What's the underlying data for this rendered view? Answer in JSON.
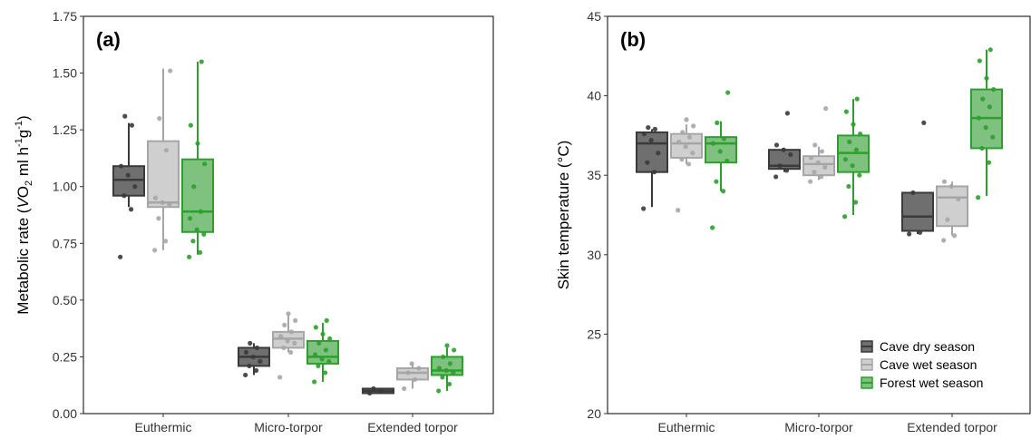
{
  "colors": {
    "cave_dry": "#3a3a3a",
    "cave_wet": "#a6a6a6",
    "forest_wet": "#2e9e2e"
  },
  "legend": {
    "position": "bottom-right of panel (b)",
    "entries": [
      "Cave dry season",
      "Cave wet season",
      "Forest wet season"
    ]
  },
  "chart_data": [
    {
      "type": "box",
      "panel_label": "(a)",
      "ylabel_prefix": "Metabolic rate (",
      "ylabel_v": "V",
      "ylabel_o2": "O",
      "ylabel_o2_sub": "2",
      "ylabel_unit": " ml h",
      "ylabel_exp1": "-1",
      "ylabel_g": "g",
      "ylabel_exp2": "-1",
      "ylabel_suffix": ")",
      "xlabel": "",
      "categories": [
        "Euthermic",
        "Micro-torpor",
        "Extended torpor"
      ],
      "ylim": [
        0,
        1.75
      ],
      "yticks": [
        "0.00",
        "0.25",
        "0.50",
        "0.75",
        "1.00",
        "1.25",
        "1.50",
        "1.75"
      ],
      "grid": false,
      "series": [
        {
          "name": "Cave dry season",
          "boxes": [
            {
              "min": 0.91,
              "q1": 0.96,
              "median": 1.03,
              "q3": 1.09,
              "max": 1.28,
              "points": [
                0.69,
                0.9,
                0.96,
                1.0,
                1.05,
                1.09,
                1.27,
                1.31
              ]
            },
            {
              "min": 0.17,
              "q1": 0.21,
              "median": 0.25,
              "q3": 0.29,
              "max": 0.31,
              "points": [
                0.17,
                0.19,
                0.21,
                0.23,
                0.25,
                0.27,
                0.29,
                0.31
              ]
            },
            {
              "min": 0.09,
              "q1": 0.09,
              "median": 0.1,
              "q3": 0.11,
              "max": 0.11,
              "points": [
                0.09,
                0.1,
                0.11
              ]
            }
          ]
        },
        {
          "name": "Cave wet season",
          "boxes": [
            {
              "min": 0.72,
              "q1": 0.91,
              "median": 0.93,
              "q3": 1.2,
              "max": 1.52,
              "points": [
                0.72,
                0.76,
                0.86,
                0.92,
                0.93,
                0.95,
                1.16,
                1.3,
                1.51
              ]
            },
            {
              "min": 0.27,
              "q1": 0.29,
              "median": 0.33,
              "q3": 0.36,
              "max": 0.43,
              "points": [
                0.16,
                0.27,
                0.29,
                0.31,
                0.32,
                0.34,
                0.36,
                0.39,
                0.41,
                0.44
              ]
            },
            {
              "min": 0.11,
              "q1": 0.15,
              "median": 0.18,
              "q3": 0.2,
              "max": 0.22,
              "points": [
                0.11,
                0.15,
                0.18,
                0.2,
                0.22
              ]
            }
          ]
        },
        {
          "name": "Forest wet season",
          "boxes": [
            {
              "min": 0.7,
              "q1": 0.8,
              "median": 0.89,
              "q3": 1.12,
              "max": 1.55,
              "points": [
                0.69,
                0.71,
                0.76,
                0.79,
                0.81,
                0.86,
                0.89,
                1.0,
                1.1,
                1.19,
                1.27,
                1.55
              ]
            },
            {
              "min": 0.14,
              "q1": 0.22,
              "median": 0.25,
              "q3": 0.32,
              "max": 0.4,
              "points": [
                0.14,
                0.18,
                0.21,
                0.23,
                0.24,
                0.26,
                0.28,
                0.31,
                0.33,
                0.35,
                0.38,
                0.41
              ]
            },
            {
              "min": 0.1,
              "q1": 0.17,
              "median": 0.19,
              "q3": 0.25,
              "max": 0.29,
              "points": [
                0.1,
                0.13,
                0.16,
                0.18,
                0.19,
                0.2,
                0.22,
                0.25,
                0.28,
                0.3
              ]
            }
          ]
        }
      ]
    },
    {
      "type": "box",
      "panel_label": "(b)",
      "ylabel": "Skin temperature (°C)",
      "xlabel": "",
      "categories": [
        "Euthermic",
        "Micro-torpor",
        "Extended torpor"
      ],
      "ylim": [
        20,
        45
      ],
      "yticks": [
        "20",
        "25",
        "30",
        "35",
        "40",
        "45"
      ],
      "grid": false,
      "series": [
        {
          "name": "Cave dry season",
          "boxes": [
            {
              "min": 33.0,
              "q1": 35.2,
              "median": 37.0,
              "q3": 37.7,
              "max": 37.9,
              "points": [
                32.9,
                35.2,
                35.8,
                36.4,
                37.2,
                37.6,
                37.9,
                38.0
              ]
            },
            {
              "min": 35.2,
              "q1": 35.4,
              "median": 35.6,
              "q3": 36.6,
              "max": 36.7,
              "points": [
                34.9,
                35.3,
                35.6,
                36.3,
                36.6,
                36.9,
                38.9
              ]
            },
            {
              "min": 31.3,
              "q1": 31.5,
              "median": 32.4,
              "q3": 33.9,
              "max": 33.9,
              "points": [
                31.3,
                31.4,
                33.9,
                38.3
              ]
            }
          ]
        },
        {
          "name": "Cave wet season",
          "boxes": [
            {
              "min": 35.7,
              "q1": 36.1,
              "median": 37.0,
              "q3": 37.6,
              "max": 38.2,
              "points": [
                32.8,
                35.7,
                36.0,
                36.4,
                36.8,
                37.1,
                37.4,
                37.7,
                38.1,
                38.5
              ]
            },
            {
              "min": 34.7,
              "q1": 35.0,
              "median": 35.7,
              "q3": 36.2,
              "max": 36.8,
              "points": [
                34.6,
                34.9,
                35.2,
                35.5,
                35.8,
                36.1,
                36.5,
                36.9,
                39.2
              ]
            },
            {
              "min": 31.2,
              "q1": 31.8,
              "median": 33.6,
              "q3": 34.3,
              "max": 34.6,
              "points": [
                30.9,
                31.2,
                32.2,
                33.5,
                34.3,
                34.6
              ]
            }
          ]
        },
        {
          "name": "Forest wet season",
          "boxes": [
            {
              "min": 34.0,
              "q1": 35.8,
              "median": 37.0,
              "q3": 37.4,
              "max": 38.4,
              "points": [
                31.7,
                34.0,
                34.6,
                35.9,
                36.5,
                37.0,
                37.3,
                38.3,
                40.2
              ]
            },
            {
              "min": 32.5,
              "q1": 35.2,
              "median": 36.4,
              "q3": 37.5,
              "max": 39.8,
              "points": [
                32.4,
                33.3,
                34.3,
                35.0,
                35.6,
                36.0,
                36.6,
                37.1,
                37.6,
                38.2,
                39.0,
                39.8
              ]
            },
            {
              "min": 33.7,
              "q1": 36.7,
              "median": 38.6,
              "q3": 40.4,
              "max": 42.9,
              "points": [
                33.6,
                35.8,
                36.7,
                37.4,
                38.0,
                38.6,
                39.3,
                39.8,
                40.4,
                41.1,
                42.2,
                42.9
              ]
            }
          ]
        }
      ]
    }
  ]
}
